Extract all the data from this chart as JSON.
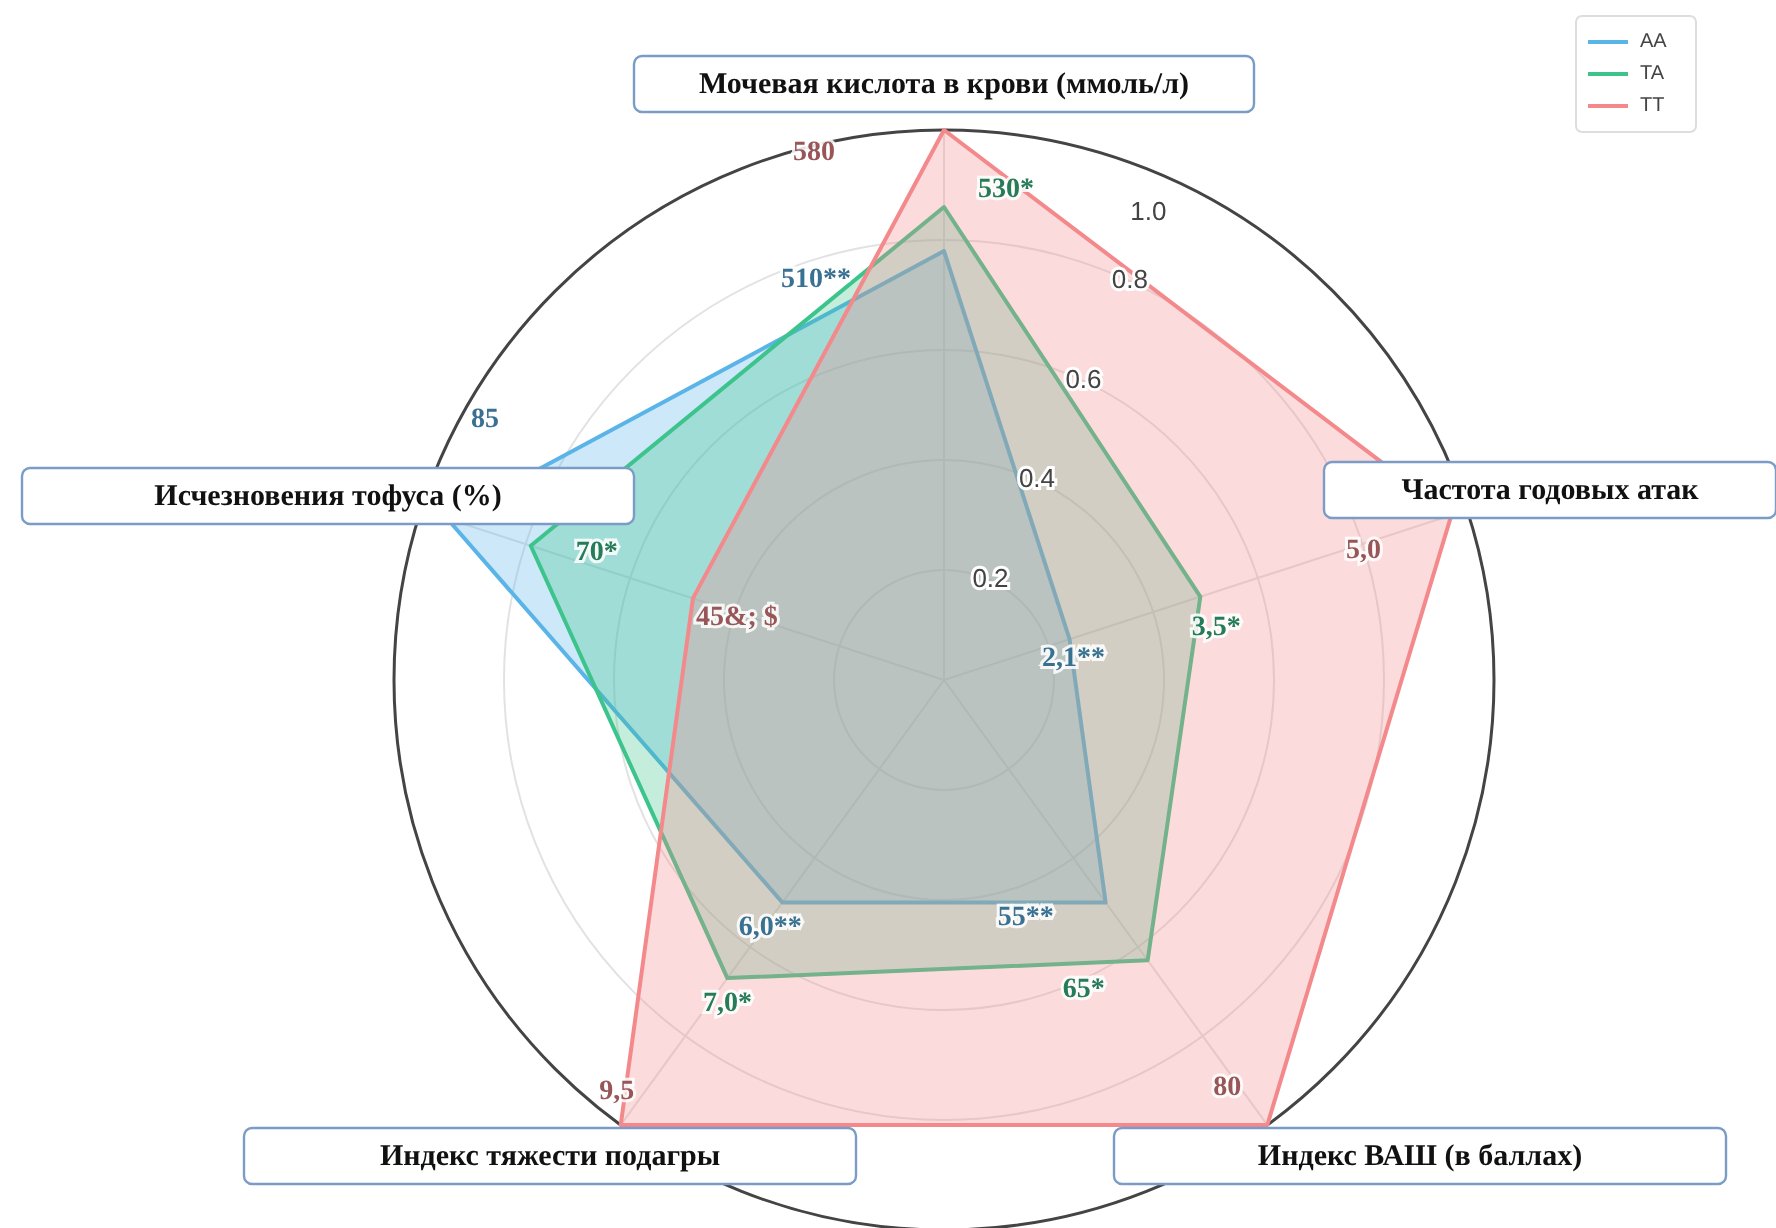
{
  "chart_data": {
    "type": "radar",
    "categories": [
      "Мочевая кислота в крови (ммоль/л)",
      "Частота годовых атак",
      "Индекс ВАШ (в баллах)",
      "Индекс тяжести подагры",
      "Исчезновения тофуса (%)"
    ],
    "series": [
      {
        "name": "AA",
        "color": "#5ab4e8",
        "values": [
          0.78,
          0.24,
          0.5,
          0.5,
          0.95
        ]
      },
      {
        "name": "TA",
        "color": "#3cc48c",
        "values": [
          0.86,
          0.49,
          0.63,
          0.67,
          0.79
        ]
      },
      {
        "name": "TT",
        "color": "#f4898c",
        "values": [
          1.0,
          0.97,
          1.0,
          1.0,
          0.48
        ]
      }
    ],
    "annotations": [
      "510**",
      "2,1**",
      "55**",
      "6,0**",
      "85",
      "530*",
      "3,5*",
      "65*",
      "7,0*",
      "70*",
      "580",
      "5,0",
      "80",
      "9,5",
      "45&; $"
    ],
    "ylim": [
      0,
      1
    ],
    "yticks": [
      0.2,
      0.4,
      0.6,
      0.8,
      {
        "value": 1,
        "label": "1.0"
      }
    ],
    "grid": true,
    "legend": "top right"
  }
}
